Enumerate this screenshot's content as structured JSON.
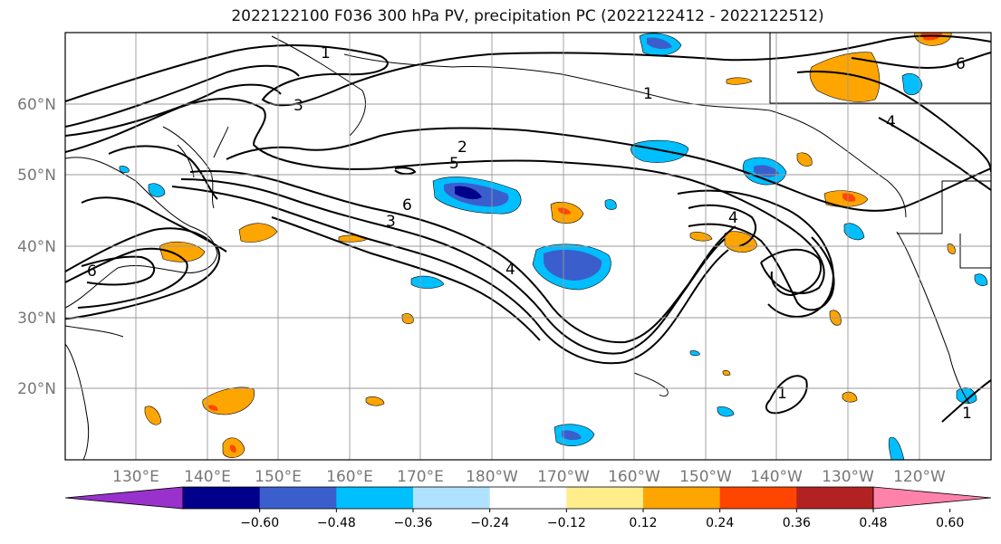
{
  "title": "2022122100 F036 300 hPa PV, precipitation PC (2022122412 - 2022122512)",
  "lat_labels": [
    "60°N",
    "50°N",
    "40°N",
    "30°N",
    "20°N"
  ],
  "lon_labels": [
    "130°E",
    "140°E",
    "150°E",
    "160°E",
    "170°E",
    "180°W",
    "170°W",
    "160°W",
    "150°W",
    "140°W",
    "130°W",
    "120°W"
  ],
  "contour_labels": [
    "1",
    "1",
    "2",
    "3",
    "3",
    "4",
    "4",
    "5",
    "6",
    "6",
    "6",
    "4",
    "1",
    "1"
  ],
  "colorbar": {
    "colors": [
      "#9932cc",
      "#00008b",
      "#3a5fcd",
      "#00bfff",
      "#b0e2ff",
      "#ffffff",
      "#ffec8b",
      "#ffa500",
      "#ff4500",
      "#b22222",
      "#ff82ab"
    ],
    "tick_labels": [
      "−0.60",
      "−0.48",
      "−0.36",
      "−0.24",
      "−0.12",
      "0.12",
      "0.24",
      "0.36",
      "0.48",
      "0.60"
    ]
  },
  "colors": {
    "pv_contour": "#000000",
    "coastline": "#000000",
    "grid": "#999999"
  }
}
